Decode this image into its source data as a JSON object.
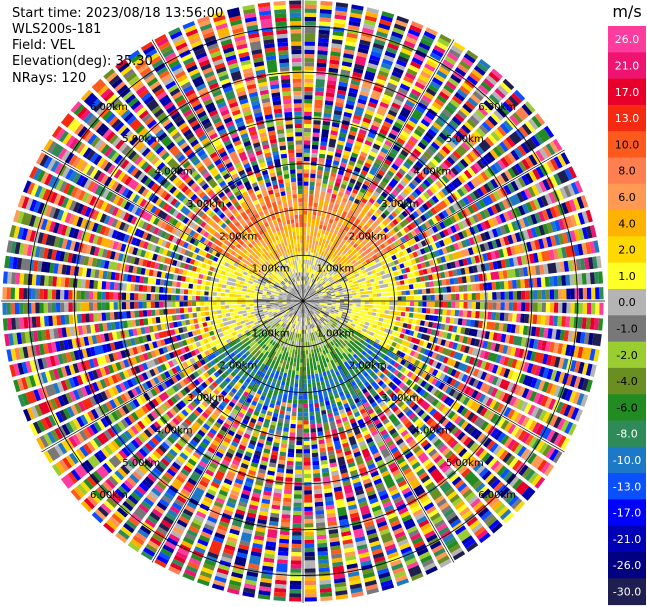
{
  "header": {
    "start_time": "Start time: 2023/08/18 13:56:00",
    "instrument": "WLS200s-181",
    "field": "Field: VEL",
    "elevation": "Elevation(deg): 35.30",
    "nrays": "NRays: 120"
  },
  "chart_data": {
    "type": "heatmap",
    "projection": "polar-ppi",
    "field": "VEL",
    "units": "m/s",
    "nrays": 120,
    "range_rings_km": [
      1.0,
      2.0,
      3.0,
      4.0,
      5.0,
      6.0
    ],
    "ring_labels": [
      "1.00km",
      "2.00km",
      "3.00km",
      "4.00km",
      "5.00km",
      "6.00km"
    ],
    "max_range_km": 6.6,
    "spokes_deg": [
      0,
      30,
      60,
      90,
      120,
      150,
      180,
      210,
      240,
      270,
      300,
      330
    ],
    "colorbar": {
      "unit_label": "m/s",
      "tick_labels": [
        "26.0",
        "21.0",
        "17.0",
        "13.0",
        "10.0",
        "8.0",
        "6.0",
        "4.0",
        "2.0",
        "1.0",
        "0.0",
        "-1.0",
        "-2.0",
        "-4.0",
        "-6.0",
        "-8.0",
        "-10.0",
        "-13.0",
        "-17.0",
        "-21.0",
        "-26.0",
        "-30.0"
      ],
      "colors": [
        "#ff3c9e",
        "#f01472",
        "#e8002a",
        "#f52a10",
        "#ff5a1e",
        "#ff7f50",
        "#ff9a55",
        "#ffb300",
        "#ffd800",
        "#ffff28",
        "#b4b4b4",
        "#787878",
        "#9acd32",
        "#6b8e23",
        "#228b22",
        "#2e8b57",
        "#1e78c8",
        "#0a50ff",
        "#0000ff",
        "#0000b4",
        "#000080",
        "#1e1e50"
      ]
    },
    "pattern_summary": {
      "near_field": "gray / low-velocity core within ~1 km",
      "north_sector": "orange / yellow positive velocities (2-10 m/s) to ~2.5 km",
      "south_sector": "green negative velocities (-2 to -8 m/s) to ~2 km, blue (-10 to -13 m/s) near 2 km",
      "east_west": "yellow band near 1-2 km",
      "far_field": "noisy multicolor returns beyond ~2.5 km"
    }
  }
}
